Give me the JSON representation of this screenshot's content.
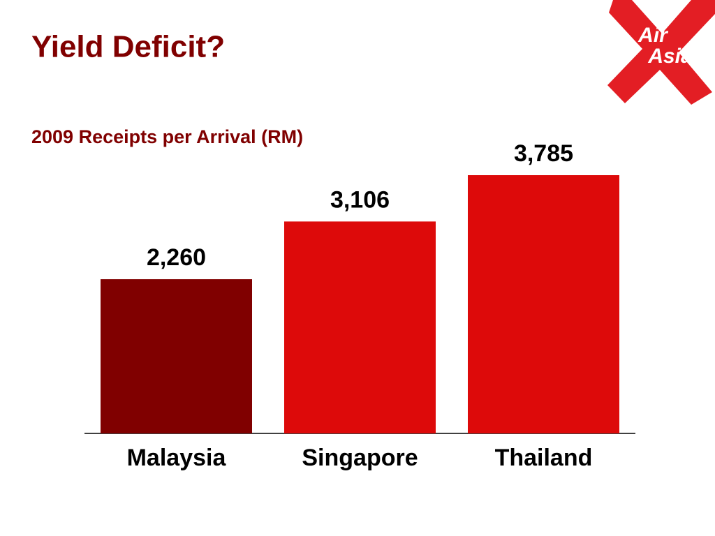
{
  "chart_data": {
    "type": "bar",
    "title": "Yield Deficit?",
    "subtitle": "2009 Receipts per Arrival (RM)",
    "categories": [
      "Malaysia",
      "Singapore",
      "Thailand"
    ],
    "values": [
      2260,
      3106,
      3785
    ],
    "value_labels": [
      "2,260",
      "3,106",
      "3,785"
    ],
    "colors": [
      "#800000",
      "#dd0a0a",
      "#dd0a0a"
    ]
  },
  "logo": {
    "line1": "Air",
    "line2": "Asia"
  }
}
